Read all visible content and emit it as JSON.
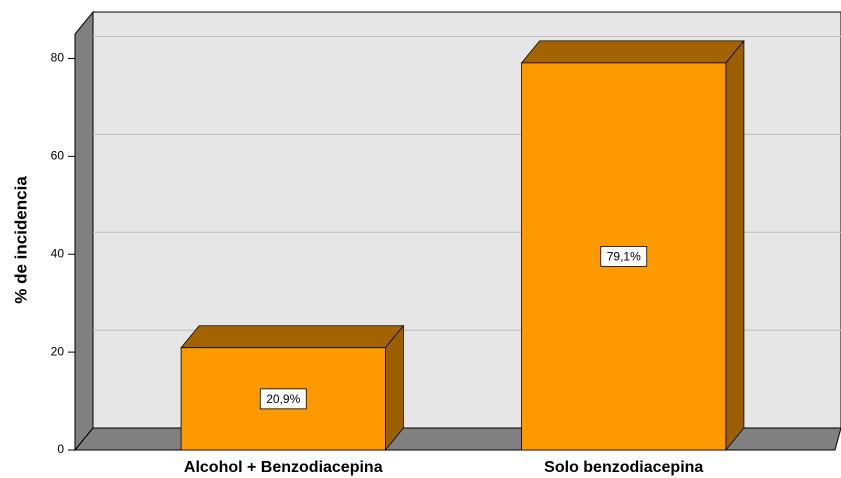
{
  "chart_data": {
    "type": "bar3d",
    "y_label": "% de incidencia",
    "categories": [
      "Alcohol + Benzodiacepina",
      "Solo benzodiacepina"
    ],
    "values": [
      20.9,
      79.1
    ],
    "value_labels": [
      "20,9%",
      "79,1%"
    ],
    "color": "#ff9900",
    "ylim": [
      0,
      85
    ],
    "yticks": [
      0,
      20,
      40,
      60,
      80
    ],
    "grid": true
  }
}
